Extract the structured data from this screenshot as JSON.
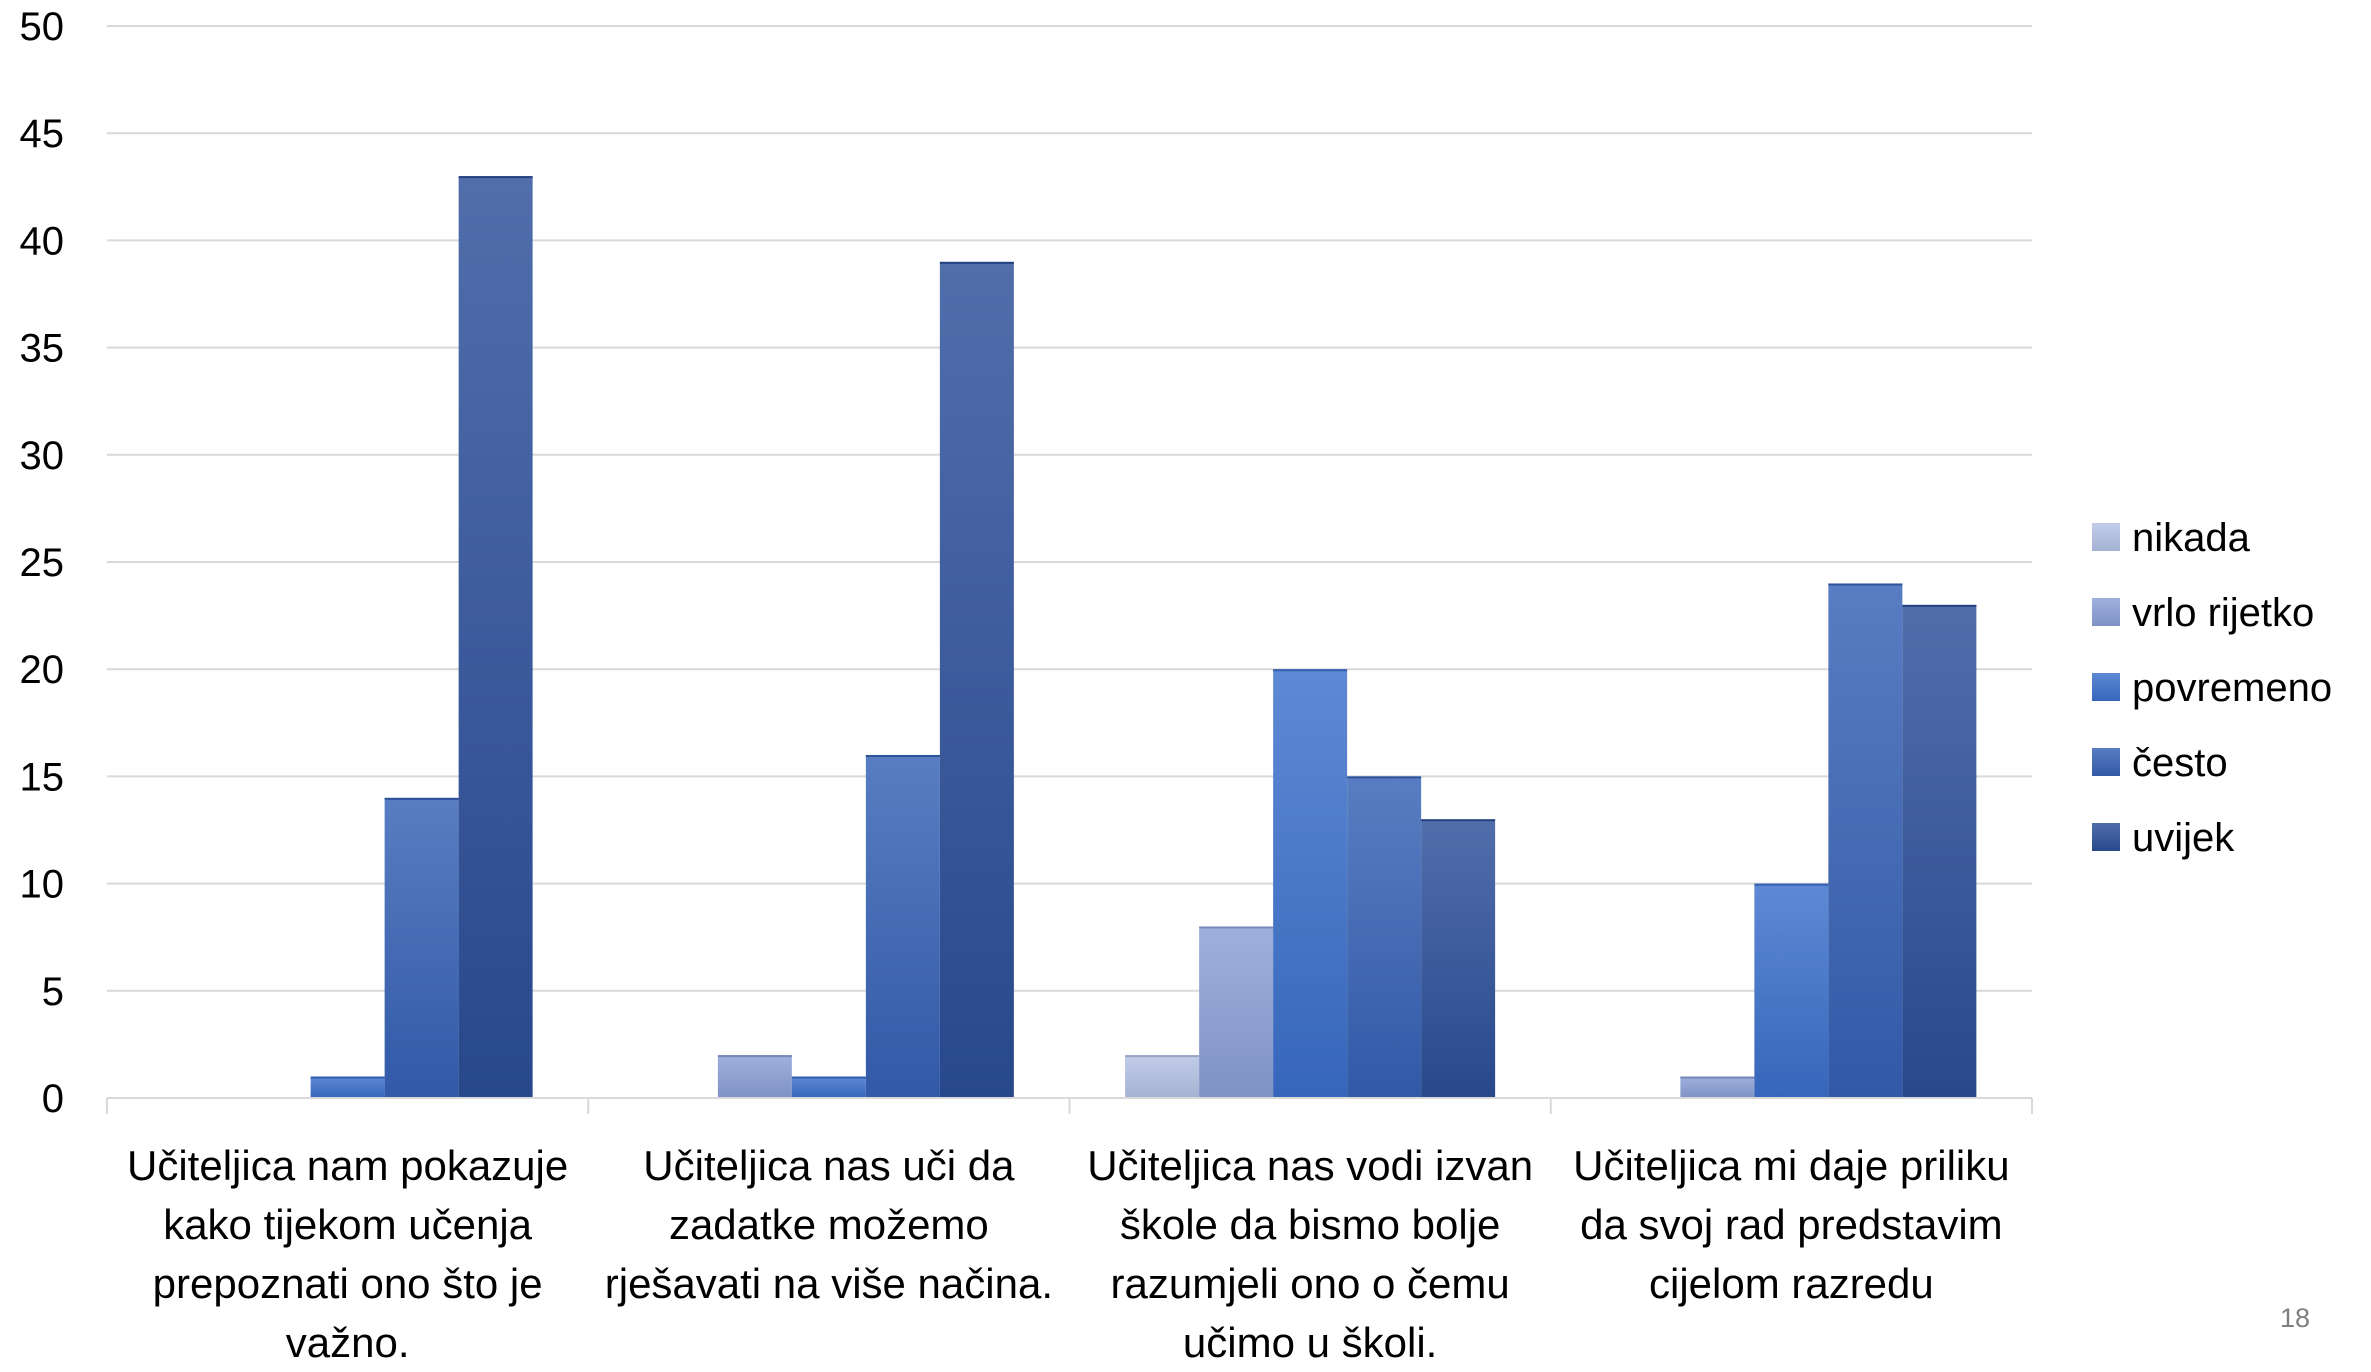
{
  "chart_data": {
    "type": "bar",
    "categories": [
      "Učiteljica nam pokazuje kako tijekom učenja prepoznati ono što je važno.",
      "Učiteljica nas uči da zadatke možemo rješavati na više načina.",
      "Učiteljica nas vodi izvan škole da bismo bolje razumjeli ono o čemu učimo u školi.",
      "Učiteljica mi daje priliku da svoj rad predstavim cijelom razredu"
    ],
    "series": [
      {
        "name": "nikada",
        "values": [
          0,
          0,
          2,
          0
        ],
        "color": "#b4c1e4"
      },
      {
        "name": "vrlo rijetko",
        "values": [
          0,
          2,
          8,
          1
        ],
        "color": "#8a9fd6"
      },
      {
        "name": "povremeno",
        "values": [
          1,
          1,
          20,
          10
        ],
        "color": "#3b6fcb"
      },
      {
        "name": "često",
        "values": [
          14,
          16,
          15,
          24
        ],
        "color": "#3561b4"
      },
      {
        "name": "uvijek",
        "values": [
          43,
          39,
          13,
          23
        ],
        "color": "#2b4e98"
      }
    ],
    "ylim": [
      0,
      50
    ],
    "yticks": [
      0,
      5,
      10,
      15,
      20,
      25,
      30,
      35,
      40,
      45,
      50
    ],
    "grid": true,
    "legend_position": "right",
    "title": "",
    "xlabel": "",
    "ylabel": ""
  },
  "page_number": "18"
}
